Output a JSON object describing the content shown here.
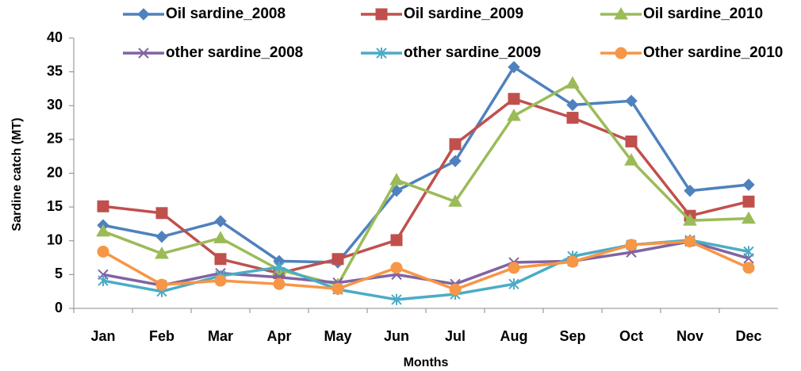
{
  "chart_data": {
    "type": "line",
    "x_label": "Months",
    "y_label": "Sardine catch (MT)",
    "categories": [
      "Jan",
      "Feb",
      "Mar",
      "Apr",
      "May",
      "Jun",
      "Jul",
      "Aug",
      "Sep",
      "Oct",
      "Nov",
      "Dec"
    ],
    "ylim": [
      0,
      40
    ],
    "yticks": [
      0,
      5,
      10,
      15,
      20,
      25,
      30,
      35,
      40
    ],
    "grid": false,
    "series": [
      {
        "name": "Oil sardine_2008",
        "color": "#4F81BD",
        "marker": "diamond",
        "values": [
          12.3,
          10.6,
          12.9,
          7.0,
          6.8,
          17.4,
          21.8,
          35.7,
          30.1,
          30.7,
          17.4,
          18.3
        ]
      },
      {
        "name": "Oil sardine_2009",
        "color": "#C0504D",
        "marker": "square",
        "values": [
          15.1,
          14.1,
          7.3,
          5.2,
          7.3,
          10.1,
          24.3,
          31.0,
          28.2,
          24.7,
          13.7,
          15.8
        ]
      },
      {
        "name": "Oil sardine_2010",
        "color": "#9BBB59",
        "marker": "triangle",
        "values": [
          11.4,
          8.1,
          10.4,
          5.7,
          3.5,
          19.0,
          15.8,
          28.5,
          33.3,
          21.9,
          13.0,
          13.3
        ]
      },
      {
        "name": "other sardine_2008",
        "color": "#8064A2",
        "marker": "x",
        "values": [
          5.0,
          3.4,
          5.2,
          4.6,
          3.8,
          5.0,
          3.6,
          6.8,
          7.0,
          8.3,
          9.9,
          7.4
        ]
      },
      {
        "name": "other sardine_2009",
        "color": "#4BACC6",
        "marker": "star",
        "values": [
          4.1,
          2.5,
          4.8,
          6.1,
          2.8,
          1.3,
          2.1,
          3.6,
          7.7,
          9.4,
          10.1,
          8.4
        ]
      },
      {
        "name": "Other sardine_2010",
        "color": "#F79646",
        "marker": "circle",
        "values": [
          8.4,
          3.5,
          4.1,
          3.6,
          2.9,
          6.0,
          2.8,
          6.0,
          6.9,
          9.4,
          9.9,
          6.0
        ]
      }
    ]
  }
}
